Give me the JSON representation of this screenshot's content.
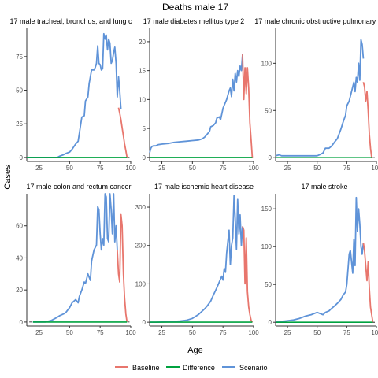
{
  "chart_data": {
    "type": "line",
    "title": "Deaths male 17",
    "xlabel": "Age",
    "ylabel": "Cases",
    "legend": {
      "placement": "bottom",
      "entries": [
        "Baseline",
        "Difference",
        "Scenario"
      ]
    },
    "colors": {
      "Baseline": "#e8766d",
      "Difference": "#00a23f",
      "Scenario": "#5f93d8"
    },
    "panels": [
      {
        "title": "17 male tracheal, bronchus, and lung c",
        "xlim": [
          15,
          100
        ],
        "ylim": [
          -3,
          96
        ],
        "xticks": [
          25,
          50,
          75,
          100
        ],
        "yticks": [
          0,
          25,
          50,
          75
        ],
        "series": [
          {
            "name": "Scenario",
            "x": [
              15,
              40,
              42,
              45,
              47,
              50,
              52,
              55,
              57,
              60,
              62,
              63,
              65,
              66,
              68,
              70,
              71,
              72,
              73,
              74,
              75,
              76,
              77,
              78,
              79,
              80,
              81,
              82,
              83,
              84,
              85,
              86,
              87,
              88,
              89,
              90,
              91,
              92
            ],
            "y": [
              0,
              0,
              1,
              2,
              3,
              4,
              6,
              10,
              12,
              30,
              31,
              42,
              45,
              55,
              65,
              65,
              67,
              70,
              83,
              70,
              69,
              65,
              66,
              92,
              88,
              91,
              80,
              88,
              85,
              70,
              72,
              78,
              82,
              70,
              45,
              60,
              50,
              36
            ]
          },
          {
            "name": "Baseline",
            "x": [
              90,
              91,
              92,
              93,
              94,
              95,
              96,
              97
            ],
            "y": [
              37,
              33,
              28,
              22,
              16,
              10,
              5,
              0
            ]
          },
          {
            "name": "Difference",
            "x": [
              15,
              97
            ],
            "y": [
              0,
              0
            ]
          }
        ]
      },
      {
        "title": "17 male diabetes mellitus type 2",
        "xlim": [
          15,
          100
        ],
        "ylim": [
          -0.7,
          22.3
        ],
        "xticks": [
          25,
          50,
          75,
          100
        ],
        "yticks": [
          0,
          5,
          10,
          15,
          20
        ],
        "series": [
          {
            "name": "Scenario",
            "x": [
              15,
              16,
              17,
              18,
              20,
              22,
              25,
              30,
              35,
              40,
              45,
              50,
              55,
              58,
              60,
              62,
              64,
              65,
              67,
              69,
              70,
              72,
              73,
              75,
              76,
              78,
              80,
              81,
              82,
              83,
              84,
              85,
              86,
              87,
              88,
              89,
              90,
              91
            ],
            "y": [
              0.8,
              1.6,
              1.9,
              2.0,
              2.0,
              2.2,
              2.3,
              2.4,
              2.6,
              2.7,
              2.8,
              2.9,
              3.0,
              3.2,
              3.5,
              4.0,
              4.5,
              5.3,
              5.5,
              6.0,
              6.8,
              7.0,
              6.5,
              8.5,
              9.0,
              10.0,
              11.5,
              12.0,
              10.5,
              13.5,
              11.5,
              14.5,
              13.0,
              15.0,
              14.0,
              15.8,
              15.0,
              17.8
            ]
          },
          {
            "name": "Baseline",
            "x": [
              91,
              92,
              93,
              94,
              95,
              96,
              97,
              98,
              99
            ],
            "y": [
              17.8,
              10.0,
              15.5,
              11.0,
              15.5,
              12.0,
              6.0,
              3.0,
              0
            ]
          },
          {
            "name": "Difference",
            "x": [
              15,
              99
            ],
            "y": [
              0,
              0
            ]
          }
        ]
      },
      {
        "title": "17 male chronic obstructive pulmonary d",
        "xlim": [
          15,
          100
        ],
        "ylim": [
          -4,
          137
        ],
        "xticks": [
          25,
          50,
          75,
          100
        ],
        "yticks": [
          0,
          50,
          100
        ],
        "series": [
          {
            "name": "Scenario",
            "x": [
              15,
              18,
              20,
              30,
              40,
              50,
              52,
              55,
              57,
              60,
              62,
              65,
              67,
              70,
              72,
              74,
              75,
              77,
              78,
              80,
              81,
              82,
              83,
              84,
              85,
              86,
              87,
              88,
              89
            ],
            "y": [
              2,
              3,
              2,
              2,
              2,
              2,
              3,
              5,
              10,
              10,
              12,
              17,
              20,
              30,
              38,
              45,
              55,
              60,
              65,
              75,
              80,
              70,
              85,
              80,
              100,
              82,
              125,
              120,
              105
            ]
          },
          {
            "name": "Baseline",
            "x": [
              89,
              90,
              91,
              92,
              93,
              94,
              95,
              96
            ],
            "y": [
              80,
              75,
              60,
              70,
              50,
              25,
              10,
              0
            ]
          },
          {
            "name": "Difference",
            "x": [
              15,
              96
            ],
            "y": [
              0,
              0
            ]
          }
        ]
      },
      {
        "title": "17 male colon and rectum cancer",
        "xlim": [
          15,
          100
        ],
        "ylim": [
          -2.5,
          80
        ],
        "xticks": [
          25,
          50,
          75,
          100
        ],
        "yticks": [
          0,
          20,
          40,
          60
        ],
        "series": [
          {
            "name": "Scenario",
            "x": [
              20,
              30,
              35,
              40,
              42,
              45,
              47,
              50,
              52,
              55,
              57,
              58,
              60,
              62,
              63,
              65,
              67,
              68,
              70,
              72,
              73,
              74,
              75,
              76,
              77,
              78,
              79,
              80,
              81,
              82,
              83,
              84,
              85,
              86,
              87,
              88,
              89
            ],
            "y": [
              0,
              0,
              1,
              3,
              4,
              5,
              6,
              9,
              12,
              14,
              12,
              16,
              20,
              25,
              24,
              30,
              26,
              38,
              45,
              48,
              72,
              70,
              55,
              45,
              52,
              48,
              80,
              78,
              52,
              50,
              80,
              70,
              55,
              80,
              50,
              60,
              45
            ]
          },
          {
            "name": "Baseline",
            "x": [
              89,
              90,
              91,
              92,
              93,
              94,
              95,
              96,
              97
            ],
            "y": [
              45,
              30,
              25,
              67,
              60,
              30,
              15,
              5,
              0
            ]
          },
          {
            "name": "Difference",
            "x": [
              20,
              97
            ],
            "y": [
              0,
              0
            ]
          }
        ]
      },
      {
        "title": "17 male ischemic heart disease",
        "xlim": [
          15,
          100
        ],
        "ylim": [
          -10,
          335
        ],
        "xticks": [
          25,
          50,
          75,
          100
        ],
        "yticks": [
          0,
          100,
          200,
          300
        ],
        "series": [
          {
            "name": "Scenario",
            "x": [
              15,
              20,
              30,
              40,
              45,
              50,
              52,
              55,
              57,
              60,
              62,
              65,
              67,
              70,
              72,
              74,
              75,
              76,
              77,
              78,
              80,
              81,
              82,
              83,
              84,
              85,
              86,
              87,
              88,
              89,
              90,
              91
            ],
            "y": [
              0,
              0,
              1,
              3,
              5,
              10,
              14,
              20,
              26,
              35,
              42,
              55,
              70,
              90,
              105,
              120,
              110,
              140,
              130,
              180,
              240,
              150,
              200,
              220,
              330,
              270,
              190,
              320,
              230,
              280,
              200,
              250
            ]
          },
          {
            "name": "Baseline",
            "x": [
              91,
              92,
              93,
              94,
              95,
              96,
              97,
              98,
              99
            ],
            "y": [
              250,
              240,
              100,
              220,
              80,
              40,
              20,
              5,
              0
            ]
          },
          {
            "name": "Difference",
            "x": [
              15,
              99
            ],
            "y": [
              0,
              0
            ]
          }
        ]
      },
      {
        "title": "17 male stroke",
        "xlim": [
          15,
          100
        ],
        "ylim": [
          -5,
          170
        ],
        "xticks": [
          25,
          50,
          75,
          100
        ],
        "yticks": [
          0,
          50,
          100,
          150
        ],
        "series": [
          {
            "name": "Scenario",
            "x": [
              15,
              20,
              25,
              30,
              35,
              40,
              45,
              50,
              55,
              57,
              60,
              62,
              65,
              67,
              70,
              72,
              74,
              75,
              76,
              77,
              78,
              80,
              81,
              82,
              83,
              84,
              85,
              86,
              87,
              88,
              89
            ],
            "y": [
              0,
              1,
              2,
              3,
              5,
              8,
              10,
              13,
              10,
              13,
              15,
              18,
              22,
              25,
              30,
              36,
              40,
              50,
              70,
              90,
              95,
              65,
              110,
              75,
              165,
              120,
              150,
              130,
              100,
              90,
              105
            ]
          },
          {
            "name": "Baseline",
            "x": [
              89,
              90,
              91,
              92,
              93,
              94,
              95,
              96,
              97
            ],
            "y": [
              105,
              95,
              75,
              55,
              80,
              45,
              20,
              10,
              0
            ]
          },
          {
            "name": "Difference",
            "x": [
              15,
              97
            ],
            "y": [
              0,
              0
            ]
          }
        ]
      }
    ]
  }
}
